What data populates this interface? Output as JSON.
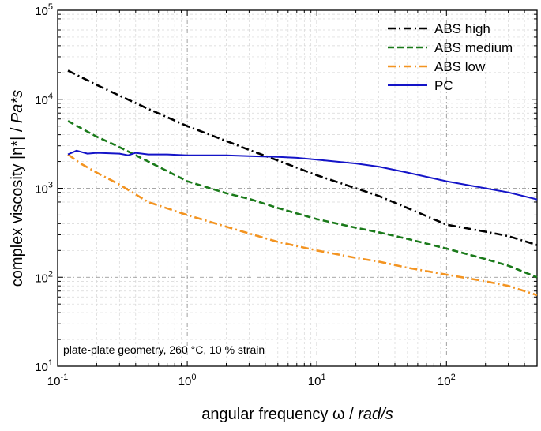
{
  "chart_data": {
    "type": "line",
    "xlabel_main": "angular frequency ω / ",
    "xlabel_unit": "rad/s",
    "ylabel_main": "complex viscosity |η*| / ",
    "ylabel_unit": "Pa*s",
    "xscale": "log",
    "yscale": "log",
    "xlim": [
      0.1,
      500
    ],
    "ylim": [
      10,
      100000
    ],
    "grid": true,
    "legend_position": "top-right",
    "x_ticks": [
      {
        "base": "10",
        "exp": "-1",
        "value": 0.1
      },
      {
        "base": "10",
        "exp": "0",
        "value": 1
      },
      {
        "base": "10",
        "exp": "1",
        "value": 10
      },
      {
        "base": "10",
        "exp": "2",
        "value": 100
      }
    ],
    "y_ticks": [
      {
        "base": "10",
        "exp": "1",
        "value": 10
      },
      {
        "base": "10",
        "exp": "2",
        "value": 100
      },
      {
        "base": "10",
        "exp": "3",
        "value": 1000
      },
      {
        "base": "10",
        "exp": "4",
        "value": 10000
      },
      {
        "base": "10",
        "exp": "5",
        "value": 100000
      }
    ],
    "annotation": "plate-plate geometry, 260 °C, 10 % strain",
    "series": [
      {
        "name": "ABS high",
        "color": "#000000",
        "dash": "dash-dot",
        "x": [
          0.12,
          0.2,
          0.3,
          0.5,
          1,
          2,
          3,
          5,
          10,
          20,
          30,
          50,
          100,
          200,
          300,
          500
        ],
        "y": [
          21000,
          14500,
          11000,
          7800,
          5000,
          3400,
          2700,
          2050,
          1400,
          1000,
          820,
          600,
          390,
          325,
          290,
          230
        ]
      },
      {
        "name": "ABS medium",
        "color": "#1a7a1a",
        "dash": "dashed",
        "x": [
          0.12,
          0.2,
          0.3,
          0.5,
          1,
          2,
          3,
          5,
          10,
          20,
          30,
          50,
          100,
          200,
          300,
          500
        ],
        "y": [
          5700,
          3800,
          2900,
          2000,
          1200,
          880,
          760,
          600,
          450,
          360,
          320,
          270,
          210,
          160,
          135,
          100
        ]
      },
      {
        "name": "ABS low",
        "color": "#f39421",
        "dash": "dash-dot",
        "x": [
          0.12,
          0.15,
          0.2,
          0.3,
          0.5,
          1,
          2,
          3,
          5,
          10,
          20,
          30,
          50,
          100,
          200,
          300,
          500
        ],
        "y": [
          2400,
          1900,
          1500,
          1100,
          700,
          500,
          370,
          310,
          250,
          200,
          165,
          150,
          128,
          107,
          90,
          80,
          63
        ]
      },
      {
        "name": "PC",
        "color": "#1414c8",
        "dash": "solid",
        "x": [
          0.12,
          0.14,
          0.17,
          0.2,
          0.3,
          0.35,
          0.4,
          0.5,
          0.7,
          1,
          2,
          3,
          5,
          7,
          10,
          20,
          30,
          50,
          100,
          200,
          300,
          500
        ],
        "y": [
          2400,
          2650,
          2450,
          2500,
          2450,
          2350,
          2500,
          2400,
          2400,
          2350,
          2350,
          2300,
          2250,
          2200,
          2100,
          1900,
          1750,
          1500,
          1200,
          1000,
          900,
          750
        ]
      }
    ]
  }
}
